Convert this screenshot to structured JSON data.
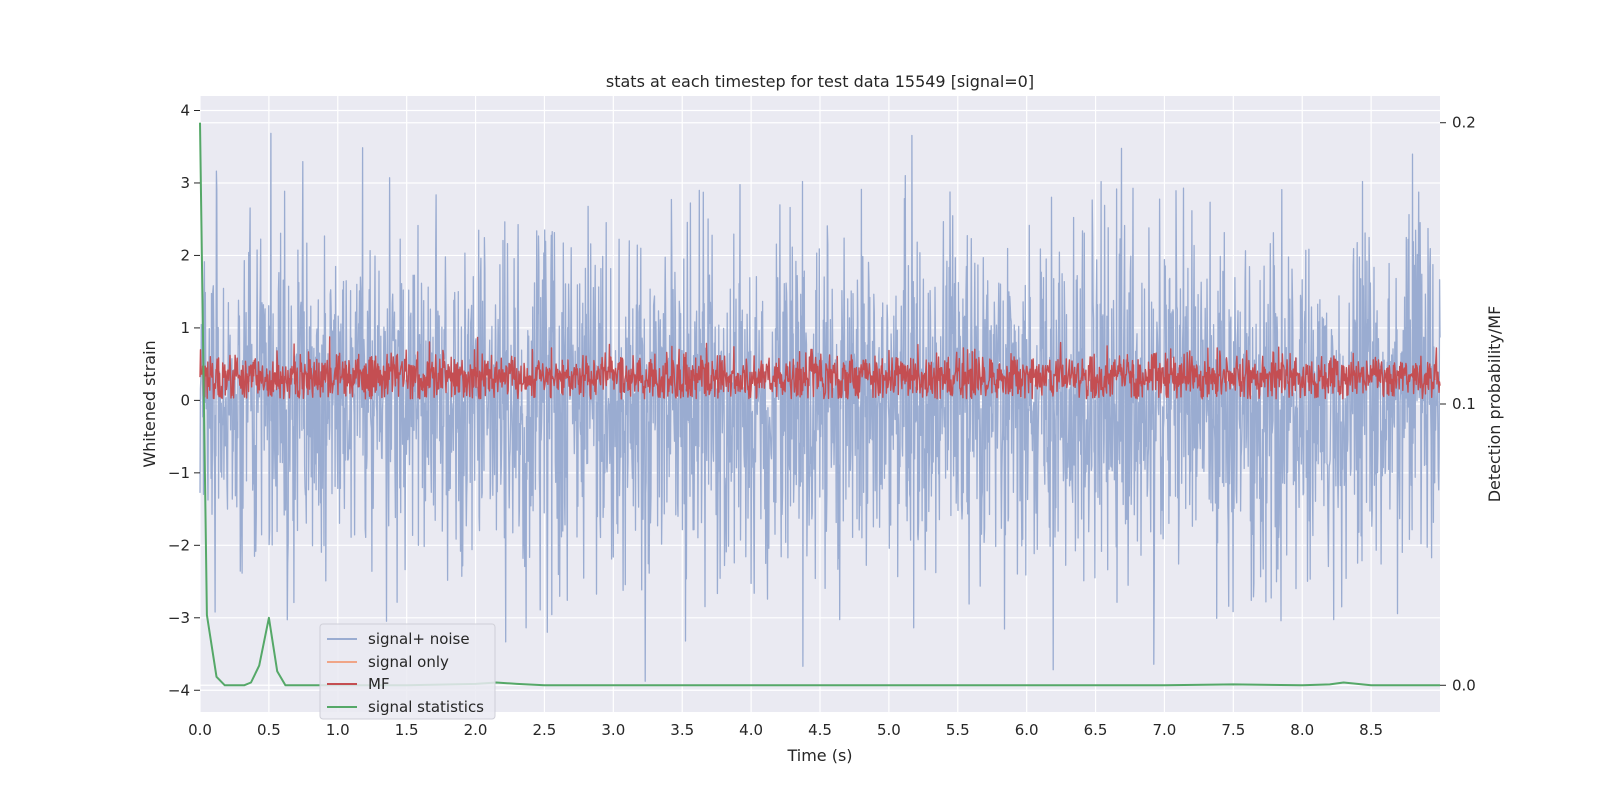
{
  "chart_data": {
    "type": "line",
    "title": "stats at each timestep for test data 15549 [signal=0]",
    "xlabel": "Time (s)",
    "ylabel": "Whitened strain",
    "y2label": "Detection probability/MF",
    "xlim": [
      0,
      9
    ],
    "ylim": [
      -4.3,
      4.2
    ],
    "y2lim": [
      -0.0095,
      0.2095
    ],
    "xticks": [
      "0.0",
      "0.5",
      "1.0",
      "1.5",
      "2.0",
      "2.5",
      "3.0",
      "3.5",
      "4.0",
      "4.5",
      "5.0",
      "5.5",
      "6.0",
      "6.5",
      "7.0",
      "7.5",
      "8.0",
      "8.5"
    ],
    "yticks": [
      "4",
      "3",
      "2",
      "1",
      "0",
      "−1",
      "−2",
      "−3",
      "−4"
    ],
    "y2ticks": [
      "0.2",
      "0.1",
      "0.0"
    ],
    "grid": true,
    "legend_position": "lower-left",
    "colors": {
      "signal_noise": "#9aacd1",
      "signal_only": "#f0a587",
      "mf": "#c44e52",
      "stats": "#55a868",
      "plot_bg": "#eaeaf2",
      "grid": "#ffffff"
    },
    "series": [
      {
        "name": "signal+ noise",
        "axis": "left",
        "description_values": "dense noise, range approx -4.0 to 3.8 whitened strain"
      },
      {
        "name": "signal only",
        "axis": "left",
        "values": []
      },
      {
        "name": "MF",
        "axis": "left",
        "description_values": "dense noise, range approx 0.0 to 0.95"
      },
      {
        "name": "signal statistics",
        "axis": "right",
        "x": [
          0.0,
          0.05,
          0.12,
          0.18,
          0.25,
          0.32,
          0.37,
          0.43,
          0.5,
          0.56,
          0.62,
          0.7,
          1.0,
          1.5,
          2.0,
          2.15,
          2.3,
          2.5,
          3.0,
          4.0,
          5.0,
          6.0,
          7.0,
          7.5,
          8.0,
          8.2,
          8.3,
          8.5,
          9.0
        ],
        "values": [
          0.2,
          0.025,
          0.003,
          0.0,
          0.0,
          0.0,
          0.001,
          0.007,
          0.024,
          0.005,
          0.0,
          0.0,
          0.0,
          0.0,
          0.0005,
          0.001,
          0.0005,
          0.0,
          0.0,
          0.0,
          0.0,
          0.0,
          0.0,
          0.0003,
          0.0,
          0.0003,
          0.001,
          0.0,
          0.0
        ]
      }
    ]
  }
}
